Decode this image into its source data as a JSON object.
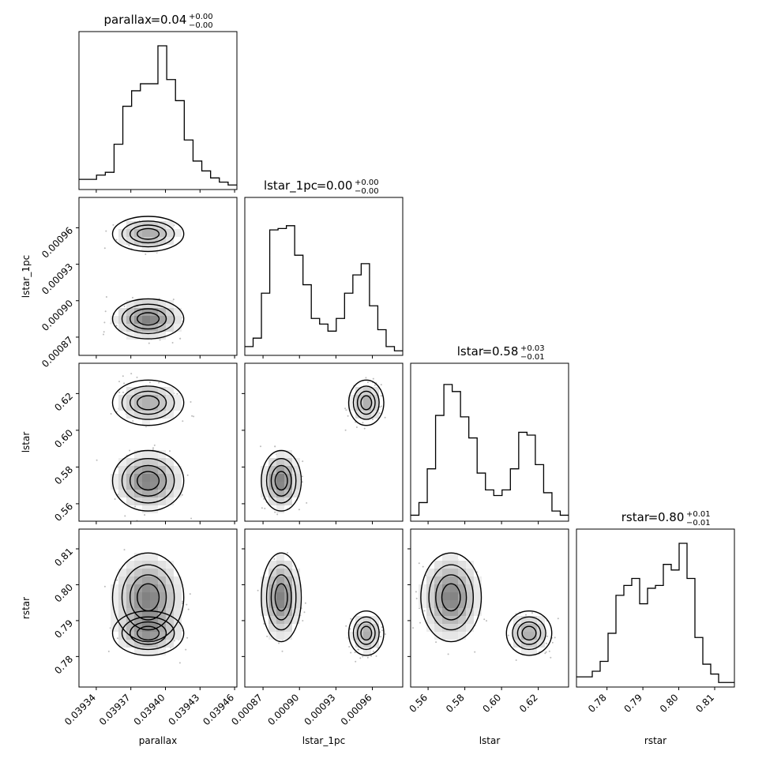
{
  "chart_data": {
    "type": "corner",
    "parameters": [
      {
        "name": "parallax",
        "median": "0.04",
        "plus": "+0.00",
        "minus": "−0.00"
      },
      {
        "name": "lstar_1pc",
        "median": "0.00",
        "plus": "+0.00",
        "minus": "−0.00"
      },
      {
        "name": "lstar",
        "median": "0.58",
        "plus": "+0.03",
        "minus": "−0.01"
      },
      {
        "name": "rstar",
        "median": "0.80",
        "plus": "+0.01",
        "minus": "−0.01"
      }
    ],
    "ranges": [
      [
        0.039325,
        0.039462
      ],
      [
        0.000855,
        0.000985
      ],
      [
        0.5505,
        0.6365
      ],
      [
        0.7715,
        0.8155
      ]
    ],
    "ticks": [
      {
        "values": [
          0.03934,
          0.03937,
          0.0394,
          0.03943,
          0.03946
        ],
        "labels": [
          "0.03934",
          "0.03937",
          "0.03940",
          "0.03943",
          "0.03946"
        ]
      },
      {
        "values": [
          0.00087,
          0.0009,
          0.00093,
          0.00096
        ],
        "labels": [
          "0.00087",
          "0.00090",
          "0.00093",
          "0.00096"
        ]
      },
      {
        "values": [
          0.56,
          0.58,
          0.6,
          0.62
        ],
        "labels": [
          "0.56",
          "0.58",
          "0.60",
          "0.62"
        ]
      },
      {
        "values": [
          0.78,
          0.79,
          0.8,
          0.81
        ],
        "labels": [
          "0.78",
          "0.79",
          "0.80",
          "0.81"
        ]
      }
    ],
    "histograms": [
      [
        0.05,
        0.05,
        0.08,
        0.1,
        0.3,
        0.57,
        0.68,
        0.73,
        0.73,
        1.0,
        0.76,
        0.61,
        0.33,
        0.18,
        0.11,
        0.06,
        0.03,
        0.01
      ],
      [
        0.04,
        0.1,
        0.42,
        0.87,
        0.88,
        0.9,
        0.69,
        0.48,
        0.24,
        0.2,
        0.15,
        0.24,
        0.42,
        0.55,
        0.63,
        0.33,
        0.16,
        0.04,
        0.01
      ],
      [
        0.02,
        0.11,
        0.35,
        0.73,
        0.95,
        0.9,
        0.72,
        0.57,
        0.32,
        0.2,
        0.16,
        0.2,
        0.35,
        0.61,
        0.59,
        0.38,
        0.18,
        0.05,
        0.02
      ],
      [
        0.05,
        0.05,
        0.09,
        0.16,
        0.36,
        0.63,
        0.7,
        0.75,
        0.57,
        0.68,
        0.7,
        0.85,
        0.81,
        1.0,
        0.75,
        0.33,
        0.14,
        0.07,
        0.01,
        0.01
      ]
    ],
    "clusters": [
      {
        "w": 0.6,
        "m": [
          0.039385,
          0.000885,
          0.5725,
          0.7965
        ],
        "s": [
          1.5e-05,
          8e-06,
          0.008,
          0.006
        ]
      },
      {
        "w": 0.4,
        "m": [
          0.039385,
          0.000955,
          0.615,
          0.7865
        ],
        "s": [
          1.5e-05,
          7e-06,
          0.006,
          0.003
        ]
      }
    ],
    "contour_levels": [
      0.12,
      0.32,
      0.58,
      0.82
    ],
    "axis_labels": [
      "parallax",
      "lstar_1pc",
      "lstar",
      "rstar"
    ],
    "grid": false
  }
}
